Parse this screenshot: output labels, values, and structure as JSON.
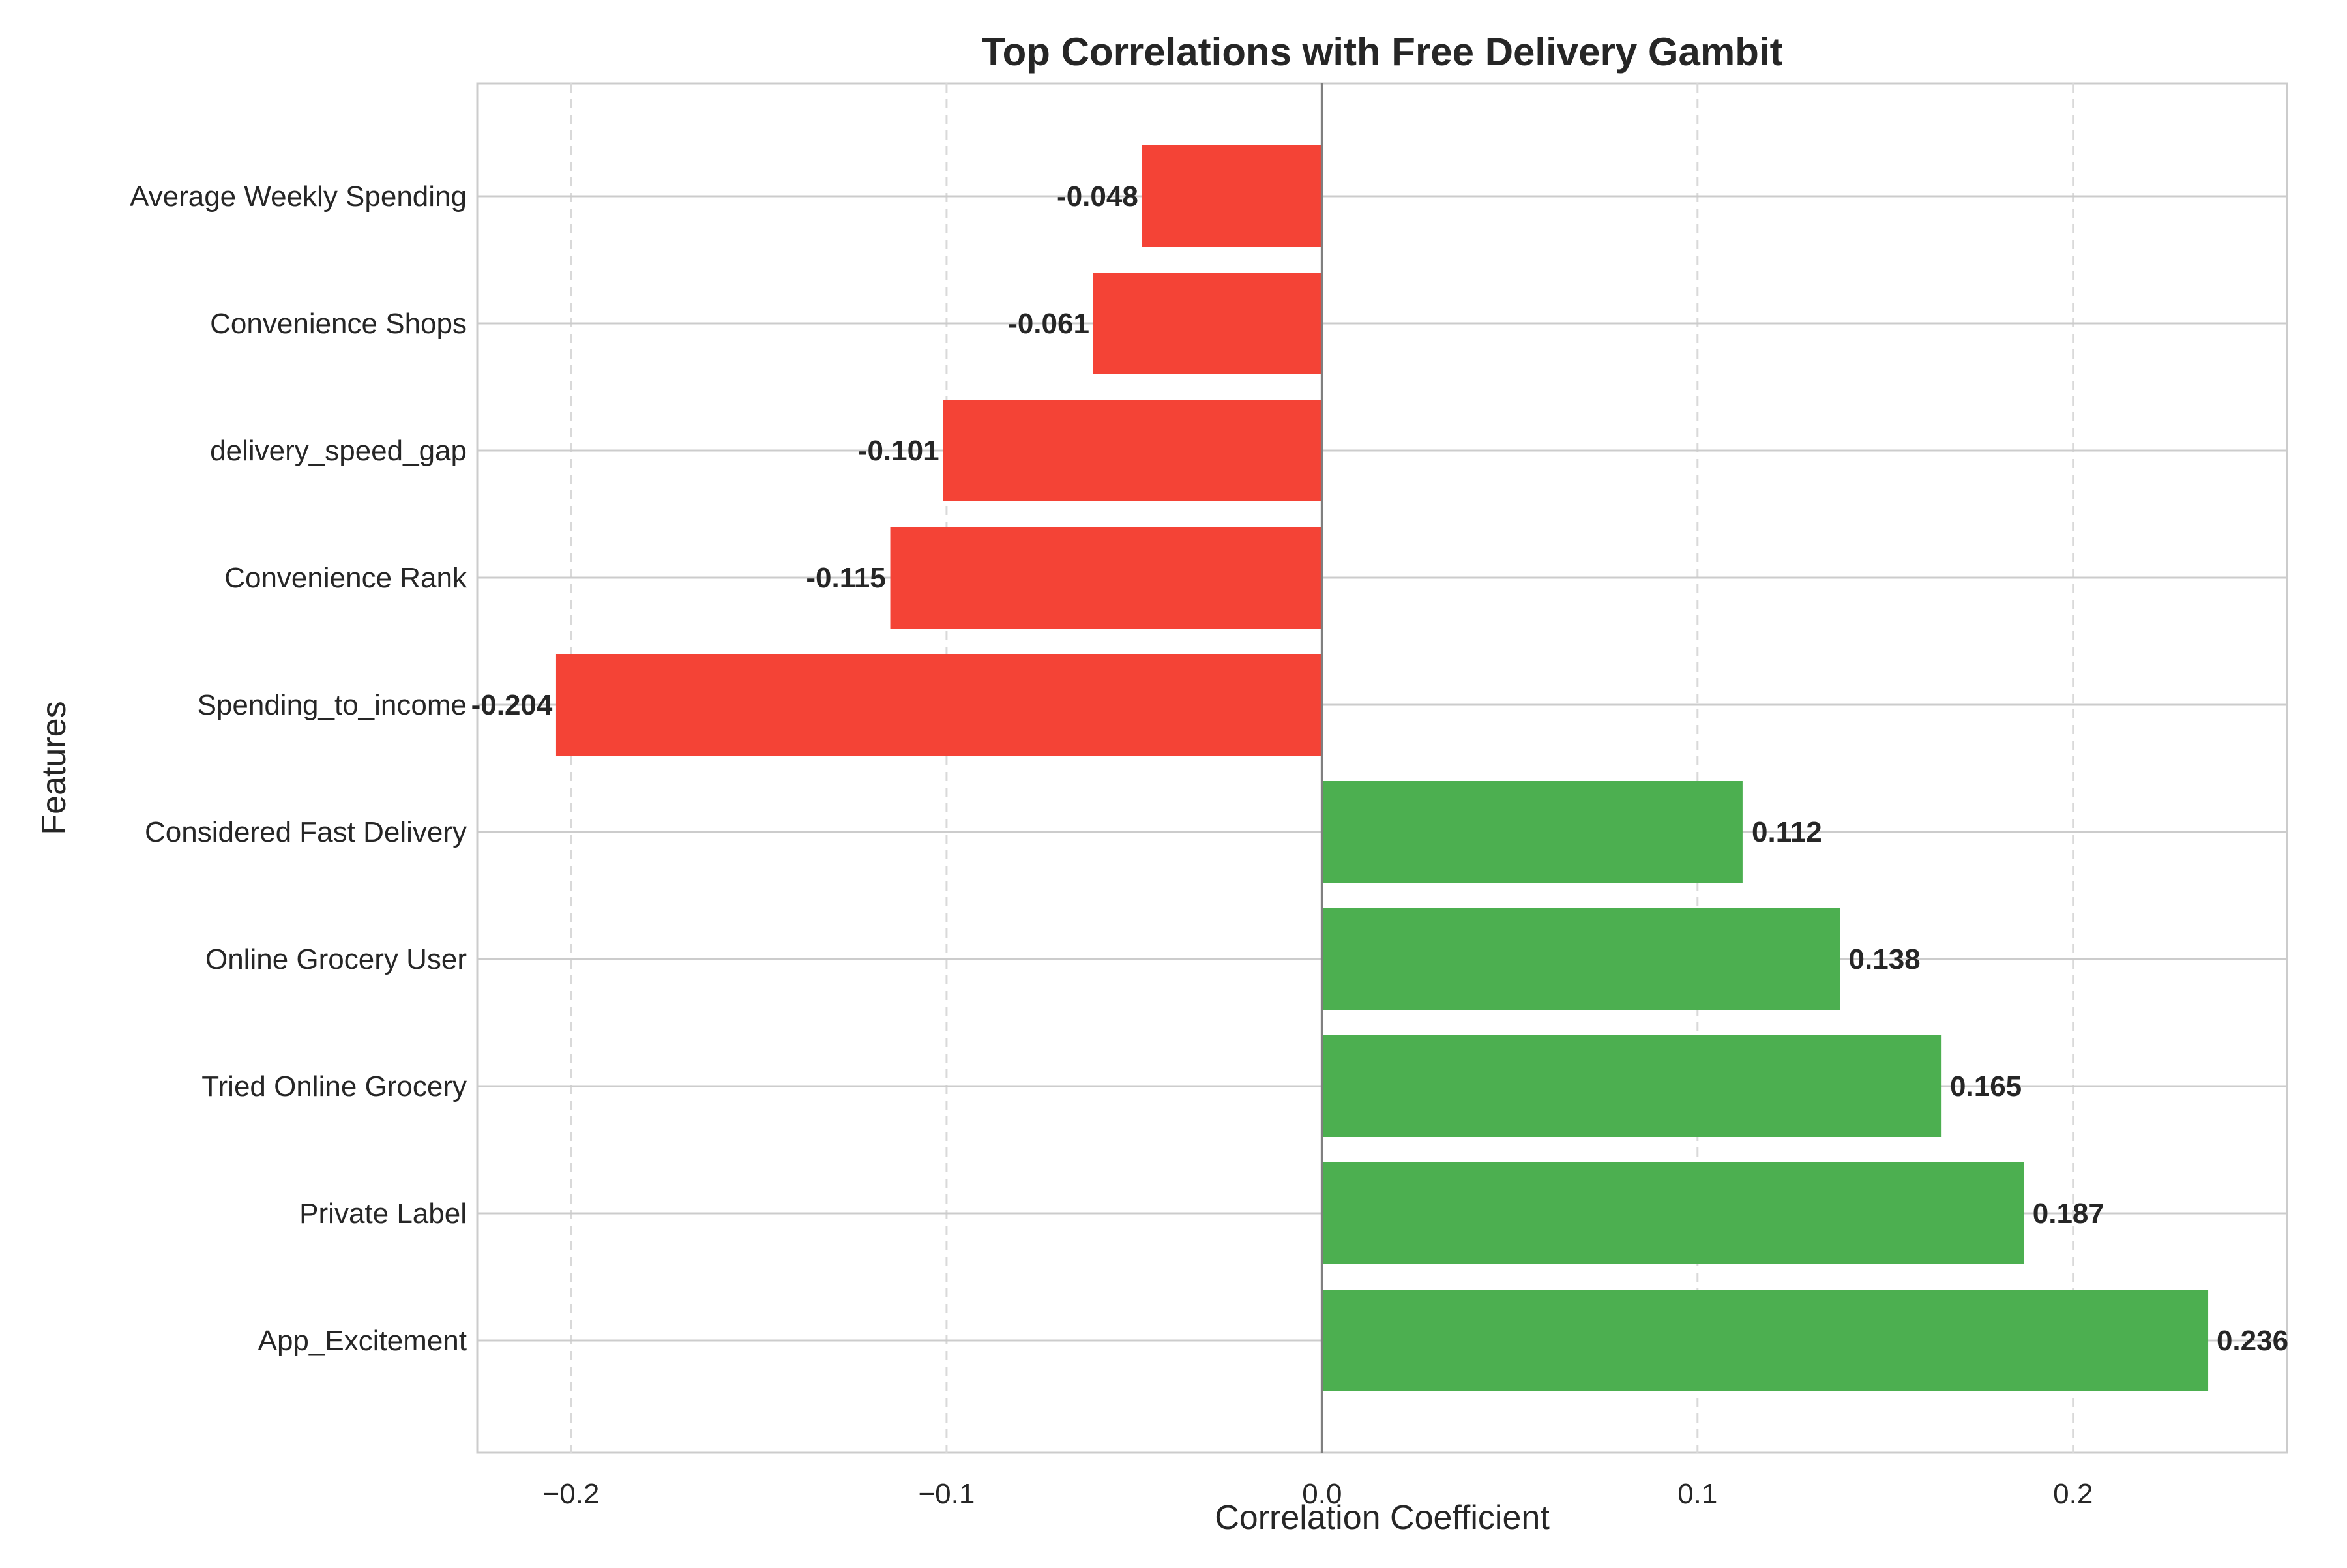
{
  "chart_data": {
    "type": "bar",
    "orientation": "horizontal",
    "title": "Top Correlations with Free Delivery Gambit",
    "xlabel": "Correlation Coefficient",
    "ylabel": "Features",
    "xlim": [
      -0.225,
      0.257
    ],
    "xticks": [
      -0.2,
      -0.1,
      0.0,
      0.1,
      0.2
    ],
    "xtick_labels": [
      "−0.2",
      "−0.1",
      "0.0",
      "0.1",
      "0.2"
    ],
    "grid": true,
    "categories": [
      "Average Weekly Spending",
      "Convenience Shops",
      "delivery_speed_gap",
      "Convenience Rank",
      "Spending_to_income",
      "Considered Fast Delivery",
      "Online Grocery User",
      "Tried Online Grocery",
      "Private Label",
      "App_Excitement"
    ],
    "values": [
      -0.048,
      -0.061,
      -0.101,
      -0.115,
      -0.204,
      0.112,
      0.138,
      0.165,
      0.187,
      0.236
    ],
    "value_labels": [
      "-0.048",
      "-0.061",
      "-0.101",
      "-0.115",
      "-0.204",
      "0.112",
      "0.138",
      "0.165",
      "0.187",
      "0.236"
    ],
    "colors": {
      "positive": "#4caf50",
      "negative": "#f44336",
      "zero_line": "#7f7f7f"
    }
  }
}
